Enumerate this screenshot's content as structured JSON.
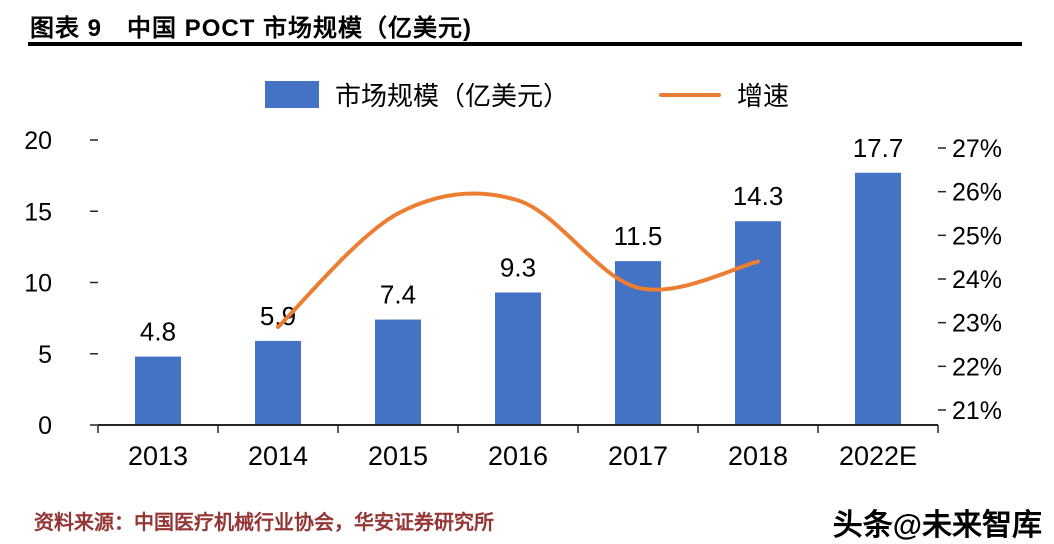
{
  "header": {
    "title": "图表 9　中国 POCT 市场规模（亿美元)"
  },
  "legend": {
    "items": [
      {
        "label": "市场规模（亿美元）",
        "color": "#4472C4",
        "type": "bar"
      },
      {
        "label": "增速",
        "color": "#ED7D31",
        "type": "line"
      }
    ]
  },
  "chart_data": {
    "type": "bar+line",
    "title": "中国 POCT 市场规模（亿美元)",
    "categories": [
      "2013",
      "2014",
      "2015",
      "2016",
      "2017",
      "2018",
      "2022E"
    ],
    "series": [
      {
        "name": "市场规模（亿美元）",
        "type": "bar",
        "color": "#4472C4",
        "values": [
          4.8,
          5.9,
          7.4,
          9.3,
          11.5,
          14.3,
          17.7
        ],
        "labels": [
          "4.8",
          "5.9",
          "7.4",
          "9.3",
          "11.5",
          "14.3",
          "17.7"
        ]
      },
      {
        "name": "增速",
        "type": "line",
        "color": "#ED7D31",
        "axis": "right",
        "x": [
          "2014",
          "2015",
          "2016",
          "2017",
          "2018"
        ],
        "values": [
          22.9,
          25.5,
          25.8,
          23.8,
          24.4
        ]
      }
    ],
    "left_axis": {
      "min": 0,
      "max": 20,
      "tick_values": [
        0,
        5,
        10,
        15,
        20
      ],
      "ticks": [
        "0",
        "5",
        "10",
        "15",
        "20"
      ]
    },
    "right_axis": {
      "min": 21,
      "max": 27,
      "tick_values": [
        21,
        22,
        23,
        24,
        25,
        26,
        27
      ],
      "ticks": [
        "21%",
        "22%",
        "23%",
        "24%",
        "25%",
        "26%",
        "27%"
      ]
    },
    "grid": false,
    "legend_position": "top"
  },
  "footer": {
    "source": "资料来源：中国医疗机械行业协会，华安证券研究所",
    "watermark": "头条@未来智库"
  }
}
